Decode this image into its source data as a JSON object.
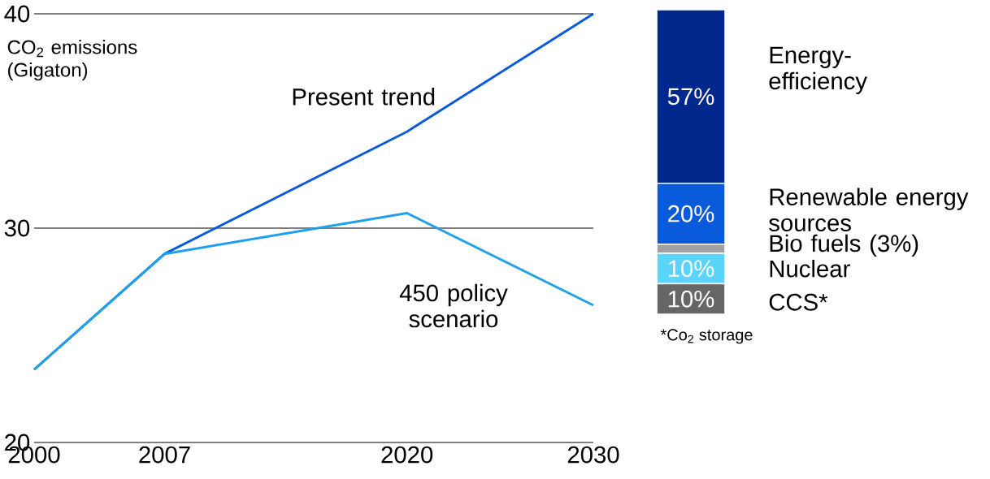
{
  "chart_data": [
    {
      "type": "line",
      "ylabel": "CO$_{2}$ emissions (Gigaton)",
      "x": [
        2000,
        2007,
        2020,
        2030
      ],
      "xlim": [
        2000,
        2030
      ],
      "xticks": [
        2000,
        2007,
        2020,
        2030
      ],
      "ylim": [
        20,
        40
      ],
      "yticks": [
        20,
        30,
        40
      ],
      "grid": "y",
      "series": [
        {
          "name": "Present trend",
          "color": "#0a5adc",
          "values": [
            23.4,
            28.8,
            34.5,
            40
          ]
        },
        {
          "name": "450 policy scenario",
          "color": "#1fa0e8",
          "values": [
            23.4,
            28.8,
            30.7,
            26.4
          ]
        }
      ]
    },
    {
      "type": "bar",
      "stacked": true,
      "categories": [
        null
      ],
      "annotations": [
        "*Co$_{2}$ storage"
      ],
      "series": [
        {
          "name": "CCS*",
          "color": "#666666",
          "values": [
            10
          ],
          "value_labels": [
            "10%"
          ]
        },
        {
          "name": "Nuclear",
          "color": "#5bd3fb",
          "values": [
            10
          ],
          "value_labels": [
            "10%"
          ]
        },
        {
          "name": "Bio fuels (3%)",
          "color": "#a0a0a0",
          "values": [
            3
          ],
          "value_labels": [
            null
          ]
        },
        {
          "name": "Renewable energy sources",
          "color": "#0a5adc",
          "values": [
            20
          ],
          "value_labels": [
            "20%"
          ]
        },
        {
          "name": "Energy-efficiency",
          "color": "#00288c",
          "values": [
            57
          ],
          "value_labels": [
            "57%"
          ]
        }
      ]
    }
  ]
}
